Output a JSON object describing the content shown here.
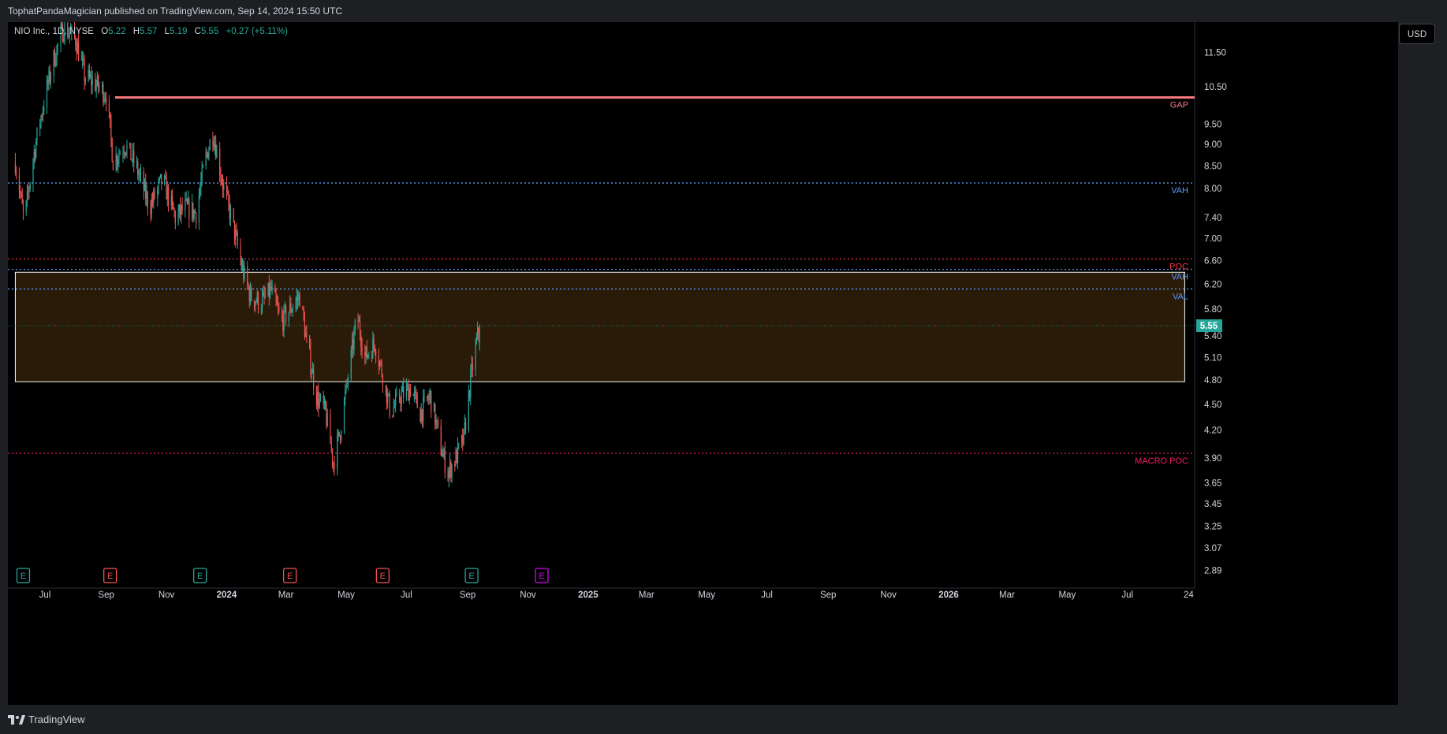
{
  "header": {
    "published_text": "TophatPandaMagician published on TradingView.com, Sep 14, 2024 15:50 UTC"
  },
  "legend": {
    "symbol": "NIO Inc., 1D, NYSE",
    "open_label": "O",
    "open": "5.22",
    "high_label": "H",
    "high": "5.57",
    "low_label": "L",
    "low": "5.19",
    "close_label": "C",
    "close": "5.55",
    "change": "+0.27 (+5.11%)"
  },
  "currency": "USD",
  "footer": {
    "brand": "TradingView"
  },
  "colors": {
    "up": "#26a69a",
    "down": "#ef5350",
    "gap": "#f77c80",
    "vah": "#5b9cf6",
    "poc": "#f23645",
    "macro_poc": "#e91e63",
    "zone_fill": "#2a1a08",
    "earnings_up": "#26a69a",
    "earnings_down": "#ef5350",
    "earnings_future": "#d500f9"
  },
  "chart_data": {
    "type": "candlestick",
    "symbol": "NIO Inc.",
    "interval": "1D",
    "exchange": "NYSE",
    "y_axis": {
      "scale": "log",
      "ticks": [
        11.5,
        10.5,
        9.5,
        9.0,
        8.5,
        8.0,
        7.4,
        7.0,
        6.6,
        6.2,
        5.8,
        5.4,
        5.1,
        4.8,
        4.5,
        4.2,
        3.9,
        3.65,
        3.45,
        3.25,
        3.07,
        2.89
      ],
      "range": [
        2.8,
        12.6
      ]
    },
    "x_axis": {
      "ticks": [
        {
          "label": "Jul",
          "date": "2023-07-01",
          "bold": false
        },
        {
          "label": "Sep",
          "date": "2023-09-01",
          "bold": false
        },
        {
          "label": "Nov",
          "date": "2023-11-01",
          "bold": false
        },
        {
          "label": "2024",
          "date": "2024-01-01",
          "bold": true
        },
        {
          "label": "Mar",
          "date": "2024-03-01",
          "bold": false
        },
        {
          "label": "May",
          "date": "2024-05-01",
          "bold": false
        },
        {
          "label": "Jul",
          "date": "2024-07-01",
          "bold": false
        },
        {
          "label": "Sep",
          "date": "2024-09-01",
          "bold": false
        },
        {
          "label": "Nov",
          "date": "2024-11-01",
          "bold": false
        },
        {
          "label": "2025",
          "date": "2025-01-01",
          "bold": true
        },
        {
          "label": "Mar",
          "date": "2025-03-01",
          "bold": false
        },
        {
          "label": "May",
          "date": "2025-05-01",
          "bold": false
        },
        {
          "label": "Jul",
          "date": "2025-07-01",
          "bold": false
        },
        {
          "label": "Sep",
          "date": "2025-09-01",
          "bold": false
        },
        {
          "label": "Nov",
          "date": "2025-11-01",
          "bold": false
        },
        {
          "label": "2026",
          "date": "2026-01-01",
          "bold": true
        },
        {
          "label": "Mar",
          "date": "2026-03-01",
          "bold": false
        },
        {
          "label": "May",
          "date": "2026-05-01",
          "bold": false
        },
        {
          "label": "Jul",
          "date": "2026-07-01",
          "bold": false
        },
        {
          "label": "24",
          "date": "2026-09-01",
          "bold": false
        }
      ]
    },
    "price_path": [
      [
        "2023-06-01",
        8.6
      ],
      [
        "2023-06-10",
        7.3
      ],
      [
        "2023-06-20",
        8.8
      ],
      [
        "2023-07-01",
        10.2
      ],
      [
        "2023-07-10",
        11.3
      ],
      [
        "2023-07-20",
        12.3
      ],
      [
        "2023-08-01",
        11.9
      ],
      [
        "2023-08-10",
        10.8
      ],
      [
        "2023-08-20",
        10.6
      ],
      [
        "2023-09-01",
        10.3
      ],
      [
        "2023-09-08",
        8.6
      ],
      [
        "2023-09-20",
        9.0
      ],
      [
        "2023-10-01",
        8.5
      ],
      [
        "2023-10-15",
        7.6
      ],
      [
        "2023-10-28",
        8.2
      ],
      [
        "2023-11-10",
        7.4
      ],
      [
        "2023-11-20",
        7.6
      ],
      [
        "2023-12-01",
        7.5
      ],
      [
        "2023-12-10",
        8.6
      ],
      [
        "2023-12-18",
        9.3
      ],
      [
        "2023-12-28",
        8.1
      ],
      [
        "2024-01-08",
        7.2
      ],
      [
        "2024-01-16",
        6.5
      ],
      [
        "2024-01-25",
        6.0
      ],
      [
        "2024-02-05",
        5.9
      ],
      [
        "2024-02-15",
        6.1
      ],
      [
        "2024-02-25",
        5.6
      ],
      [
        "2024-03-05",
        5.8
      ],
      [
        "2024-03-15",
        6.0
      ],
      [
        "2024-03-22",
        5.3
      ],
      [
        "2024-04-01",
        4.6
      ],
      [
        "2024-04-10",
        4.4
      ],
      [
        "2024-04-18",
        3.85
      ],
      [
        "2024-04-25",
        4.2
      ],
      [
        "2024-05-05",
        5.0
      ],
      [
        "2024-05-12",
        5.7
      ],
      [
        "2024-05-20",
        5.1
      ],
      [
        "2024-05-30",
        5.3
      ],
      [
        "2024-06-08",
        4.8
      ],
      [
        "2024-06-15",
        4.4
      ],
      [
        "2024-06-25",
        4.6
      ],
      [
        "2024-07-05",
        4.7
      ],
      [
        "2024-07-15",
        4.4
      ],
      [
        "2024-07-25",
        4.6
      ],
      [
        "2024-08-05",
        4.0
      ],
      [
        "2024-08-12",
        3.75
      ],
      [
        "2024-08-20",
        3.9
      ],
      [
        "2024-08-28",
        4.1
      ],
      [
        "2024-09-05",
        4.9
      ],
      [
        "2024-09-13",
        5.55
      ]
    ],
    "horizontal_lines": [
      {
        "label": "GAP",
        "value": 10.2,
        "style": "solid",
        "color": "#f77c80",
        "start": "2023-09-10"
      },
      {
        "label": "VAH",
        "value": 8.12,
        "style": "dotted",
        "color": "#5b9cf6"
      },
      {
        "label": "POC",
        "value": 6.63,
        "style": "dotted",
        "color": "#f23645"
      },
      {
        "label": "VAH",
        "value": 6.45,
        "style": "dotted",
        "color": "#5b9cf6"
      },
      {
        "label": "VAL",
        "value": 6.12,
        "style": "dotted",
        "color": "#5b9cf6"
      },
      {
        "label": "MACRO POC",
        "value": 3.95,
        "style": "dotted",
        "color": "#e91e63"
      }
    ],
    "zone": {
      "top": 6.4,
      "bottom": 4.78,
      "start": "2023-06-01",
      "end": "2026-08-28"
    },
    "last_price": {
      "value": 5.55,
      "label": "5.55"
    },
    "earnings_markers": [
      {
        "date": "2023-06-09",
        "type": "up",
        "label": "E"
      },
      {
        "date": "2023-09-05",
        "type": "down",
        "label": "E"
      },
      {
        "date": "2023-12-05",
        "type": "up",
        "label": "E"
      },
      {
        "date": "2024-03-05",
        "type": "down",
        "label": "E"
      },
      {
        "date": "2024-06-07",
        "type": "down",
        "label": "E"
      },
      {
        "date": "2024-09-05",
        "type": "up",
        "label": "E"
      },
      {
        "date": "2024-11-15",
        "type": "future",
        "label": "E"
      }
    ]
  }
}
